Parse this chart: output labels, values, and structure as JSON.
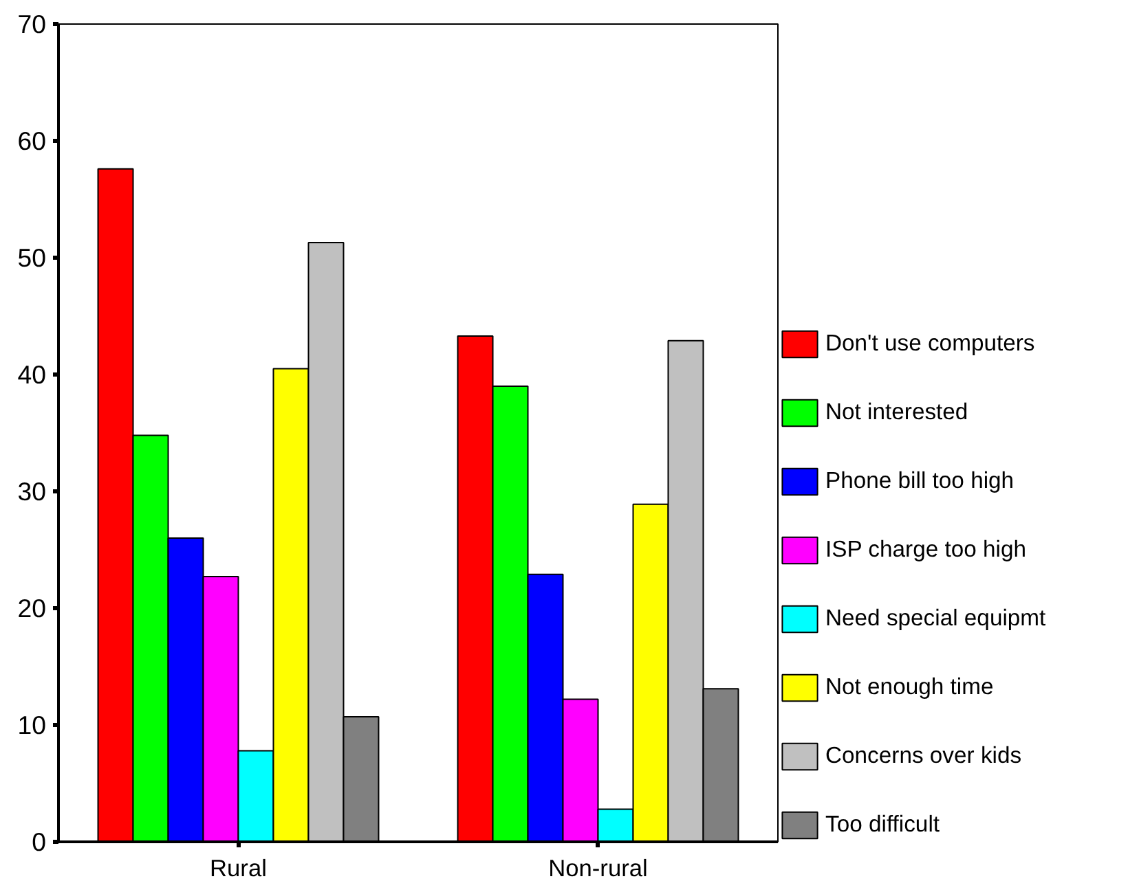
{
  "chart_data": {
    "type": "bar",
    "categories": [
      "Rural",
      "Non-rural"
    ],
    "ylim": [
      0,
      70
    ],
    "yticks": [
      0,
      10,
      20,
      30,
      40,
      50,
      60,
      70
    ],
    "grid": false,
    "legend": "right",
    "series": [
      {
        "name": "Don't use computers",
        "color": "#ff0000",
        "values": [
          57.6,
          43.3
        ]
      },
      {
        "name": "Not interested",
        "color": "#00ff00",
        "values": [
          34.8,
          39.0
        ]
      },
      {
        "name": "Phone bill too high",
        "color": "#0000ff",
        "values": [
          26.0,
          22.9
        ]
      },
      {
        "name": "ISP charge too high",
        "color": "#ff00ff",
        "values": [
          22.7,
          12.2
        ]
      },
      {
        "name": "Need special equipmt",
        "color": "#00ffff",
        "values": [
          7.8,
          2.8
        ]
      },
      {
        "name": "Not enough time",
        "color": "#ffff00",
        "values": [
          40.5,
          28.9
        ]
      },
      {
        "name": "Concerns over kids",
        "color": "#c0c0c0",
        "values": [
          51.3,
          42.9
        ]
      },
      {
        "name": "Too difficult",
        "color": "#808080",
        "values": [
          10.7,
          13.1
        ]
      }
    ]
  }
}
